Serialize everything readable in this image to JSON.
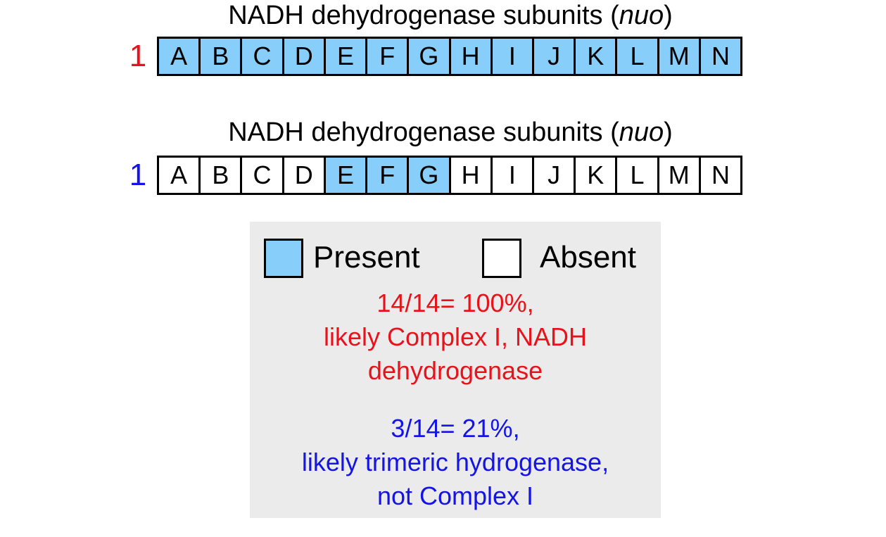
{
  "colors": {
    "present": "#87cefa",
    "absent": "#ffffff",
    "row1_number": "#e8121a",
    "row2_number": "#1414e6",
    "legend_bg": "#ebebeb"
  },
  "rows": [
    {
      "title_main": "NADH dehydrogenase subunits (",
      "title_italic": "nuo",
      "title_close": ")",
      "number": "1",
      "cells": [
        {
          "label": "A",
          "present": true
        },
        {
          "label": "B",
          "present": true
        },
        {
          "label": "C",
          "present": true
        },
        {
          "label": "D",
          "present": true
        },
        {
          "label": "E",
          "present": true
        },
        {
          "label": "F",
          "present": true
        },
        {
          "label": "G",
          "present": true
        },
        {
          "label": "H",
          "present": true
        },
        {
          "label": "I",
          "present": true
        },
        {
          "label": "J",
          "present": true
        },
        {
          "label": "K",
          "present": true
        },
        {
          "label": "L",
          "present": true
        },
        {
          "label": "M",
          "present": true
        },
        {
          "label": "N",
          "present": true
        }
      ]
    },
    {
      "title_main": "NADH dehydrogenase subunits (",
      "title_italic": "nuo",
      "title_close": ")",
      "number": "1",
      "cells": [
        {
          "label": "A",
          "present": false
        },
        {
          "label": "B",
          "present": false
        },
        {
          "label": "C",
          "present": false
        },
        {
          "label": "D",
          "present": false
        },
        {
          "label": "E",
          "present": true
        },
        {
          "label": "F",
          "present": true
        },
        {
          "label": "G",
          "present": true
        },
        {
          "label": "H",
          "present": false
        },
        {
          "label": "I",
          "present": false
        },
        {
          "label": "J",
          "present": false
        },
        {
          "label": "K",
          "present": false
        },
        {
          "label": "L",
          "present": false
        },
        {
          "label": "M",
          "present": false
        },
        {
          "label": "N",
          "present": false
        }
      ]
    }
  ],
  "legend": {
    "present_label": "Present",
    "absent_label": "Absent"
  },
  "notes": {
    "red": [
      "14/14= 100%,",
      "likely Complex I, NADH",
      "dehydrogenase"
    ],
    "blue": [
      "3/14= 21%,",
      "likely trimeric hydrogenase,",
      "not Complex I"
    ]
  }
}
